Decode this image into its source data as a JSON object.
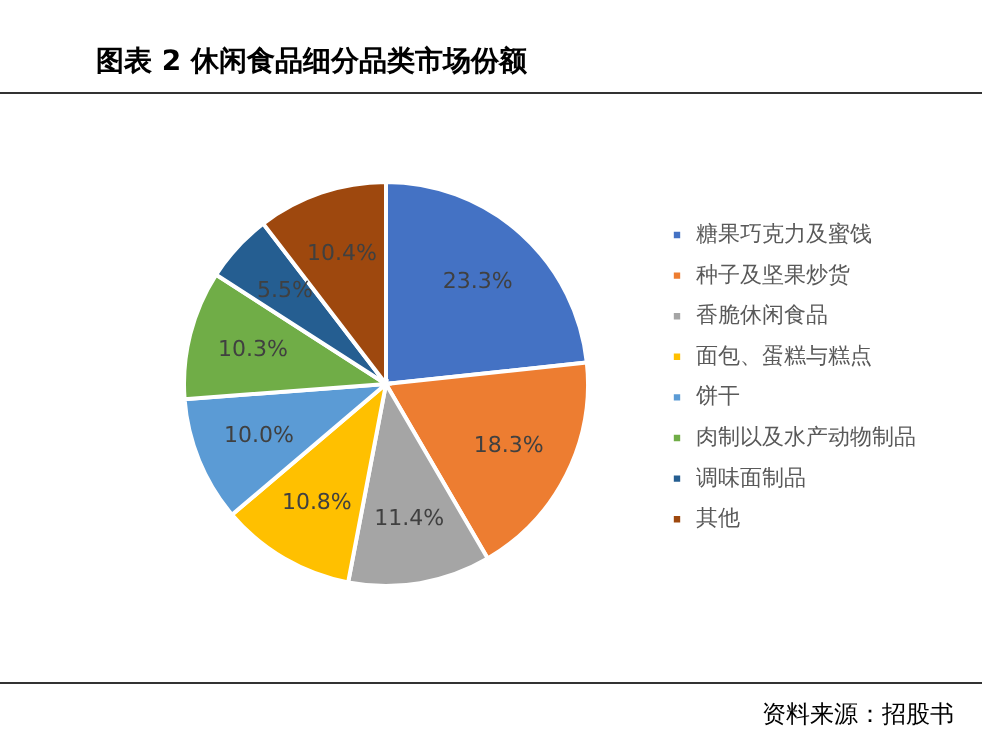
{
  "chart_data": {
    "type": "pie",
    "title": "图表 2 休闲食品细分品类市场份额",
    "categories": [
      "糖果巧克力及蜜饯",
      "种子及坚果炒货",
      "香脆休闲食品",
      "面包、蛋糕与糕点",
      "饼干",
      "肉制以及水产动物制品",
      "调味面制品",
      "其他"
    ],
    "values": [
      23.3,
      18.3,
      11.4,
      10.8,
      10.0,
      10.3,
      5.5,
      10.4
    ],
    "colors": [
      "#4472c4",
      "#ed7d31",
      "#a5a5a5",
      "#ffc000",
      "#5b9bd5",
      "#70ad47",
      "#255e91",
      "#9e480e"
    ],
    "value_labels": [
      "23.3%",
      "18.3%",
      "11.4%",
      "10.8%",
      "10.0%",
      "10.3%",
      "5.5%",
      "10.4%"
    ],
    "legend": "right",
    "annotations": [
      "资料来源：招股书"
    ]
  }
}
